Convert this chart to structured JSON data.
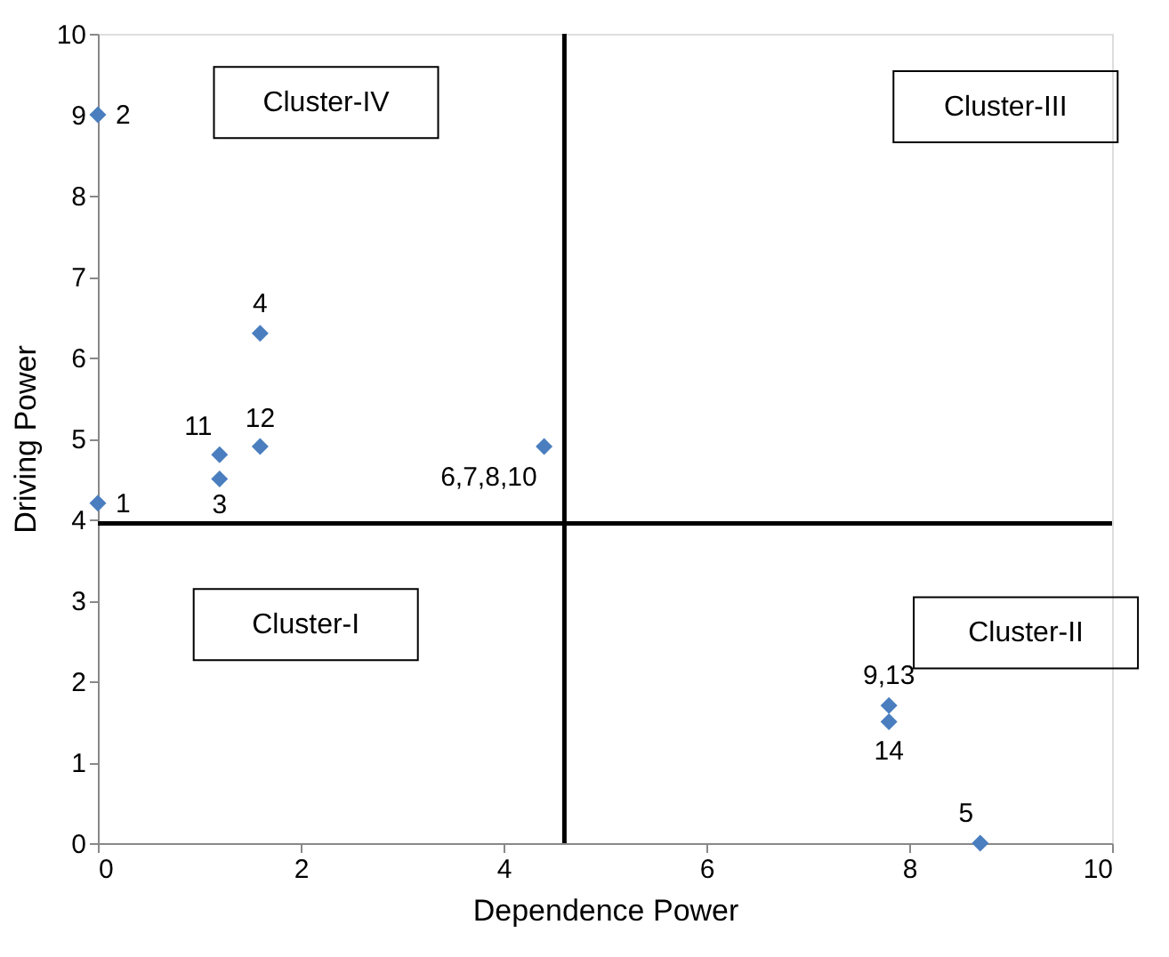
{
  "chart_data": {
    "type": "scatter",
    "xlabel": "Dependence Power",
    "ylabel": "Driving Power",
    "x": [
      0,
      0,
      1.2,
      1.6,
      8.7,
      4.4,
      7.8,
      1.2,
      1.6,
      7.8
    ],
    "values": [
      4.2,
      9,
      4.5,
      6.3,
      0,
      4.9,
      1.7,
      4.8,
      4.9,
      1.5
    ],
    "color": "#4a7ebf",
    "marker": "diamond",
    "xlim": [
      0,
      10
    ],
    "xticks": [
      0,
      2,
      4,
      6,
      8,
      10
    ],
    "ylim": [
      0,
      10
    ],
    "yticks": [
      0,
      1,
      2,
      3,
      4,
      5,
      6,
      7,
      8,
      9,
      10
    ],
    "grid": false,
    "ref_lines": [
      {
        "axis": "x",
        "value": 4.6,
        "color": "#000000"
      },
      {
        "axis": "y",
        "value": 3.95,
        "color": "#000000"
      }
    ],
    "annotations": [
      {
        "text": "1",
        "x": 0,
        "y": 4.2
      },
      {
        "text": "2",
        "x": 0,
        "y": 9
      },
      {
        "text": "3",
        "x": 1.2,
        "y": 4.5
      },
      {
        "text": "4",
        "x": 1.6,
        "y": 6.3
      },
      {
        "text": "5",
        "x": 8.7,
        "y": 0
      },
      {
        "text": "6,7,8,10",
        "x": 4.4,
        "y": 4.9
      },
      {
        "text": "9,13",
        "x": 7.8,
        "y": 1.7
      },
      {
        "text": "11",
        "x": 1.2,
        "y": 4.8
      },
      {
        "text": "12",
        "x": 1.6,
        "y": 4.9
      },
      {
        "text": "14",
        "x": 7.8,
        "y": 1.5
      },
      "Cluster-IV",
      "Cluster-III",
      "Cluster-I",
      "Cluster-II"
    ]
  }
}
